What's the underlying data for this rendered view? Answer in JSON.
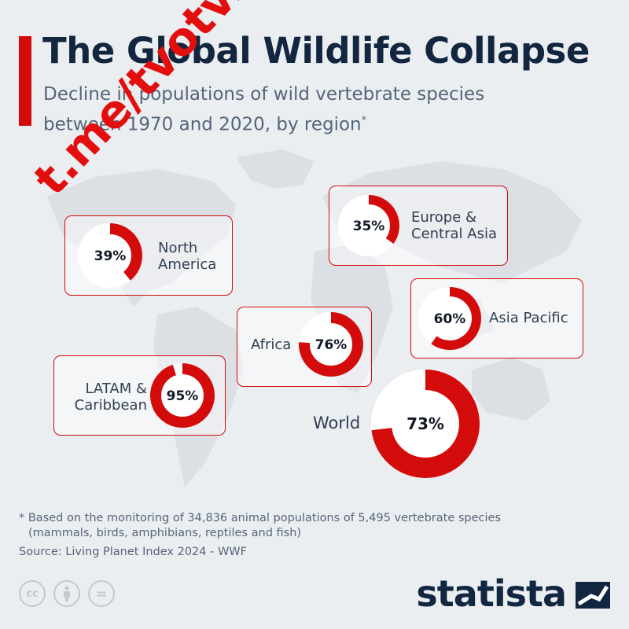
{
  "header": {
    "title": "The Global Wildlife Collapse",
    "subtitle": "Decline in populations of wild vertebrate species between 1970 and 2020, by region",
    "subtitle_mark": "*"
  },
  "chart_data": {
    "type": "pie",
    "unit": "%",
    "title": "The Global Wildlife Collapse",
    "subtitle": "Decline in populations of wild vertebrate species between 1970 and 2020, by region",
    "regions": [
      {
        "name": "North America",
        "label": "North\nAmerica",
        "value": 39,
        "value_label": "39%"
      },
      {
        "name": "Europe & Central Asia",
        "label": "Europe &\nCentral Asia",
        "value": 35,
        "value_label": "35%"
      },
      {
        "name": "Asia Pacific",
        "label": "Asia Pacific",
        "value": 60,
        "value_label": "60%"
      },
      {
        "name": "Africa",
        "label": "Africa",
        "value": 76,
        "value_label": "76%"
      },
      {
        "name": "LATAM & Caribbean",
        "label": "LATAM &\nCaribbean",
        "value": 95,
        "value_label": "95%"
      },
      {
        "name": "World",
        "label": "World",
        "value": 73,
        "value_label": "73%"
      }
    ]
  },
  "colors": {
    "accent": "#d40b0b",
    "ring_bg": "#ffffff",
    "title": "#13263f",
    "text": "#55657a"
  },
  "watermark": "t.me/tvotv.sk",
  "footer": {
    "note_line1": "* Based on the monitoring of 34,836 animal populations of 5,495 vertebrate species",
    "note_line2": "(mammals, birds, amphibians, reptiles and fish)",
    "source": "Source: Living Planet Index 2024 - WWF",
    "brand": "statista",
    "license_icons": [
      "cc-icon",
      "by-icon",
      "nd-icon"
    ],
    "cc_text": "cc",
    "nd_text": "="
  }
}
